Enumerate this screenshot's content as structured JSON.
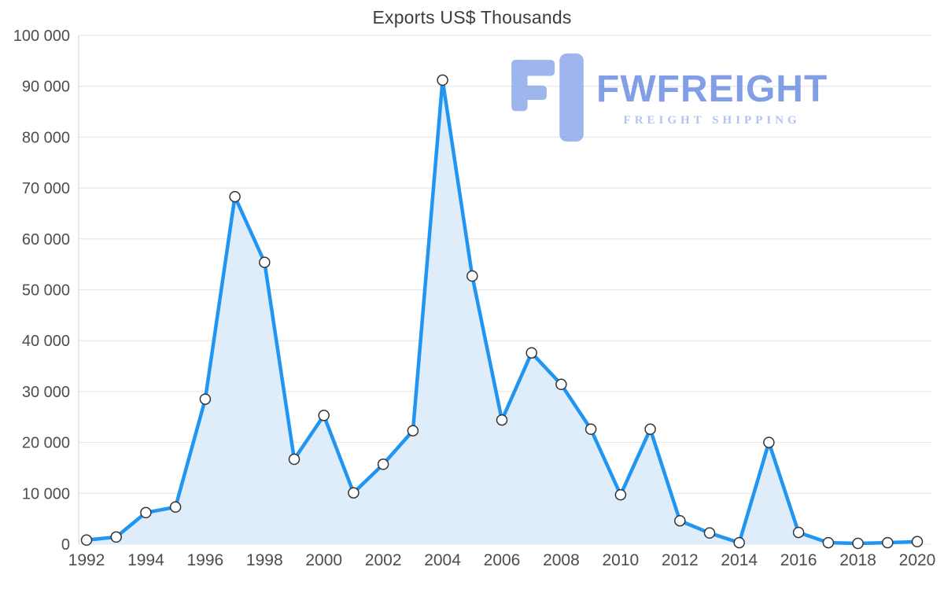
{
  "watermark": {
    "brand": "FWFREIGHT",
    "tagline": "FREIGHT SHIPPING",
    "logo_icon": "fwfreight-logo-icon",
    "color": "#8ea9ea"
  },
  "chart_data": {
    "type": "area",
    "title": "Exports US$ Thousands",
    "xlabel": "",
    "ylabel": "",
    "x": [
      1992,
      1993,
      1994,
      1995,
      1996,
      1997,
      1998,
      1999,
      2000,
      2001,
      2002,
      2003,
      2004,
      2005,
      2006,
      2007,
      2008,
      2009,
      2010,
      2011,
      2012,
      2013,
      2014,
      2015,
      2016,
      2017,
      2018,
      2019,
      2020
    ],
    "values": [
      800,
      1400,
      6200,
      7300,
      28500,
      68300,
      55400,
      16700,
      25300,
      10100,
      15700,
      22300,
      91200,
      52700,
      24400,
      37600,
      31400,
      22600,
      9700,
      22600,
      4600,
      2200,
      300,
      20000,
      2300,
      300,
      150,
      300,
      500
    ],
    "ylim": [
      0,
      100000
    ],
    "ytick_step": 10000,
    "ytick_labels": [
      "0",
      "10 000",
      "20 000",
      "30 000",
      "40 000",
      "50 000",
      "60 000",
      "70 000",
      "80 000",
      "90 000",
      "100 000"
    ],
    "xtick_labels": [
      "1992",
      "1994",
      "1996",
      "1998",
      "2000",
      "2002",
      "2004",
      "2006",
      "2008",
      "2010",
      "2012",
      "2014",
      "2016",
      "2018",
      "2020"
    ],
    "grid": "horizontal",
    "legend": "none",
    "markers": true,
    "colors": {
      "line": "#2095f2",
      "fill": "#d9eafa",
      "marker_fill": "#ffffff",
      "marker_stroke": "#333333",
      "grid": "#e4e4e4",
      "axis": "#d0d0d0",
      "tick_text": "#4d4d4d",
      "title_text": "#3d3d3d"
    }
  }
}
